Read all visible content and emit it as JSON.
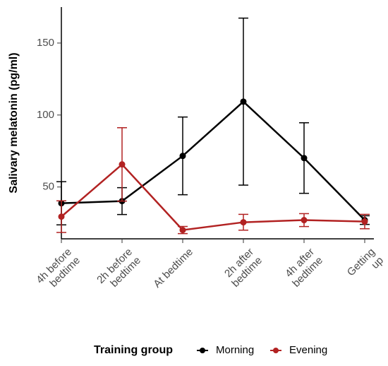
{
  "chart_data": {
    "type": "line",
    "categories": [
      "4h before\nbedtime",
      "2h before\nbedtime",
      "At bedtime",
      "2h after\nbedtime",
      "4h after\nbedtime",
      "Getting\nup"
    ],
    "y_label": "Salivary melatonin (pg/ml)",
    "legend_title": "Training group",
    "series": [
      {
        "name": "Morning",
        "color": "#000000",
        "values": [
          38.7,
          40.2,
          71.6,
          109.3,
          70.1,
          27
        ],
        "errors": [
          15,
          9.3,
          27,
          58,
          24.5,
          3
        ]
      },
      {
        "name": "Evening",
        "color": "#b22222",
        "values": [
          29.4,
          65.7,
          20.1,
          25.5,
          27,
          26
        ],
        "errors": [
          11,
          25.5,
          2.5,
          5.5,
          4.5,
          5
        ]
      }
    ],
    "ylim": [
      14,
      175
    ],
    "yticks": [
      50,
      100,
      150
    ],
    "grid": false,
    "legend": "bottom"
  }
}
